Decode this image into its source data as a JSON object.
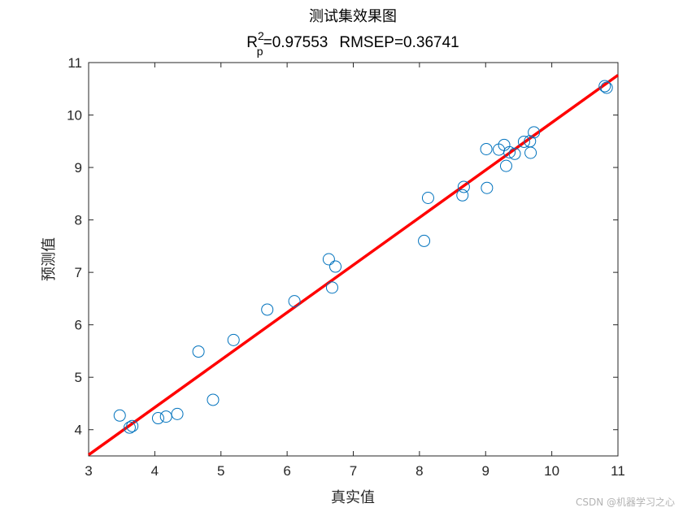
{
  "chart_data": {
    "type": "scatter",
    "title": "测试集效果图",
    "subtitle": {
      "r_label": "R",
      "r_sup": "2",
      "r_sub": "p",
      "r_value": "=0.97553",
      "rmsep": "RMSEP=0.36741"
    },
    "xlabel": "真实值",
    "ylabel": "预测值",
    "xlim": [
      3,
      11
    ],
    "ylim": [
      3.5,
      11
    ],
    "xticks": [
      3,
      4,
      5,
      6,
      7,
      8,
      9,
      10,
      11
    ],
    "yticks": [
      4,
      5,
      6,
      7,
      8,
      9,
      10,
      11
    ],
    "series": [
      {
        "type": "scatter",
        "color": "#0072BD",
        "points": [
          [
            3.47,
            4.27
          ],
          [
            3.62,
            4.04
          ],
          [
            3.66,
            4.07
          ],
          [
            4.05,
            4.22
          ],
          [
            4.17,
            4.25
          ],
          [
            4.34,
            4.3
          ],
          [
            4.66,
            5.49
          ],
          [
            4.88,
            4.57
          ],
          [
            5.19,
            5.71
          ],
          [
            5.7,
            6.29
          ],
          [
            6.11,
            6.45
          ],
          [
            6.63,
            7.25
          ],
          [
            6.68,
            6.71
          ],
          [
            6.73,
            7.11
          ],
          [
            8.07,
            7.6
          ],
          [
            8.13,
            8.42
          ],
          [
            8.65,
            8.47
          ],
          [
            8.67,
            8.63
          ],
          [
            9.01,
            9.35
          ],
          [
            9.02,
            8.61
          ],
          [
            9.2,
            9.34
          ],
          [
            9.28,
            9.43
          ],
          [
            9.31,
            9.03
          ],
          [
            9.36,
            9.29
          ],
          [
            9.44,
            9.26
          ],
          [
            9.58,
            9.49
          ],
          [
            9.67,
            9.5
          ],
          [
            9.68,
            9.28
          ],
          [
            9.73,
            9.67
          ],
          [
            10.8,
            10.55
          ],
          [
            10.83,
            10.52
          ]
        ]
      },
      {
        "type": "line",
        "color": "#FF0000",
        "points": [
          [
            3,
            3.52
          ],
          [
            11,
            10.76
          ]
        ]
      }
    ],
    "grid": false
  },
  "watermark": "CSDN @机器学习之心"
}
